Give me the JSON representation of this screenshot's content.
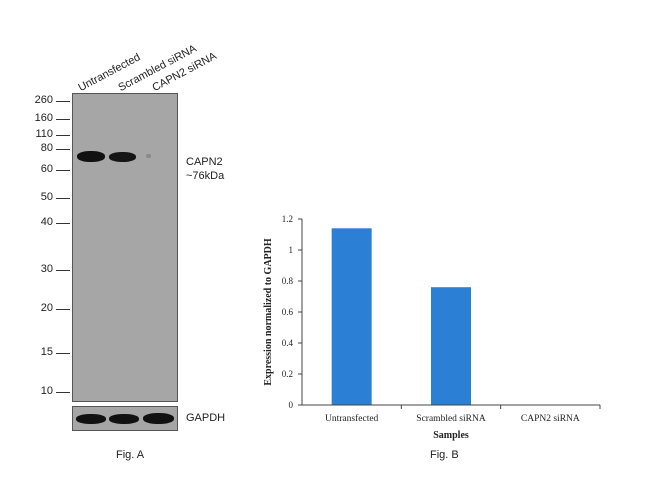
{
  "figA": {
    "lanes": [
      "Untransfected",
      "Scrambled siRNA",
      "CAPN2 siRNA"
    ],
    "mw_markers": [
      "260",
      "160",
      "110",
      "80",
      "60",
      "50",
      "40",
      "30",
      "20",
      "15",
      "10"
    ],
    "target_label_line1": "CAPN2",
    "target_label_line2": "~76kDa",
    "control_label": "GAPDH",
    "caption": "Fig. A",
    "colors": {
      "blot_bg": "#a6a6a6",
      "band": "#111111"
    }
  },
  "figB": {
    "caption": "Fig. B"
  },
  "chart_data": {
    "type": "bar",
    "categories": [
      "Untransfected",
      "Scrambled siRNA",
      "CAPN2 siRNA"
    ],
    "values": [
      1.14,
      0.76,
      0
    ],
    "ylabel": "Expression normalized to GAPDH",
    "xlabel": "Samples",
    "ylim": [
      0,
      1.2
    ],
    "yticks": [
      "0",
      "0.2",
      "0.4",
      "0.6",
      "0.8",
      "1",
      "1.2"
    ],
    "grid": false,
    "bar_color": "#2b7fd4"
  }
}
